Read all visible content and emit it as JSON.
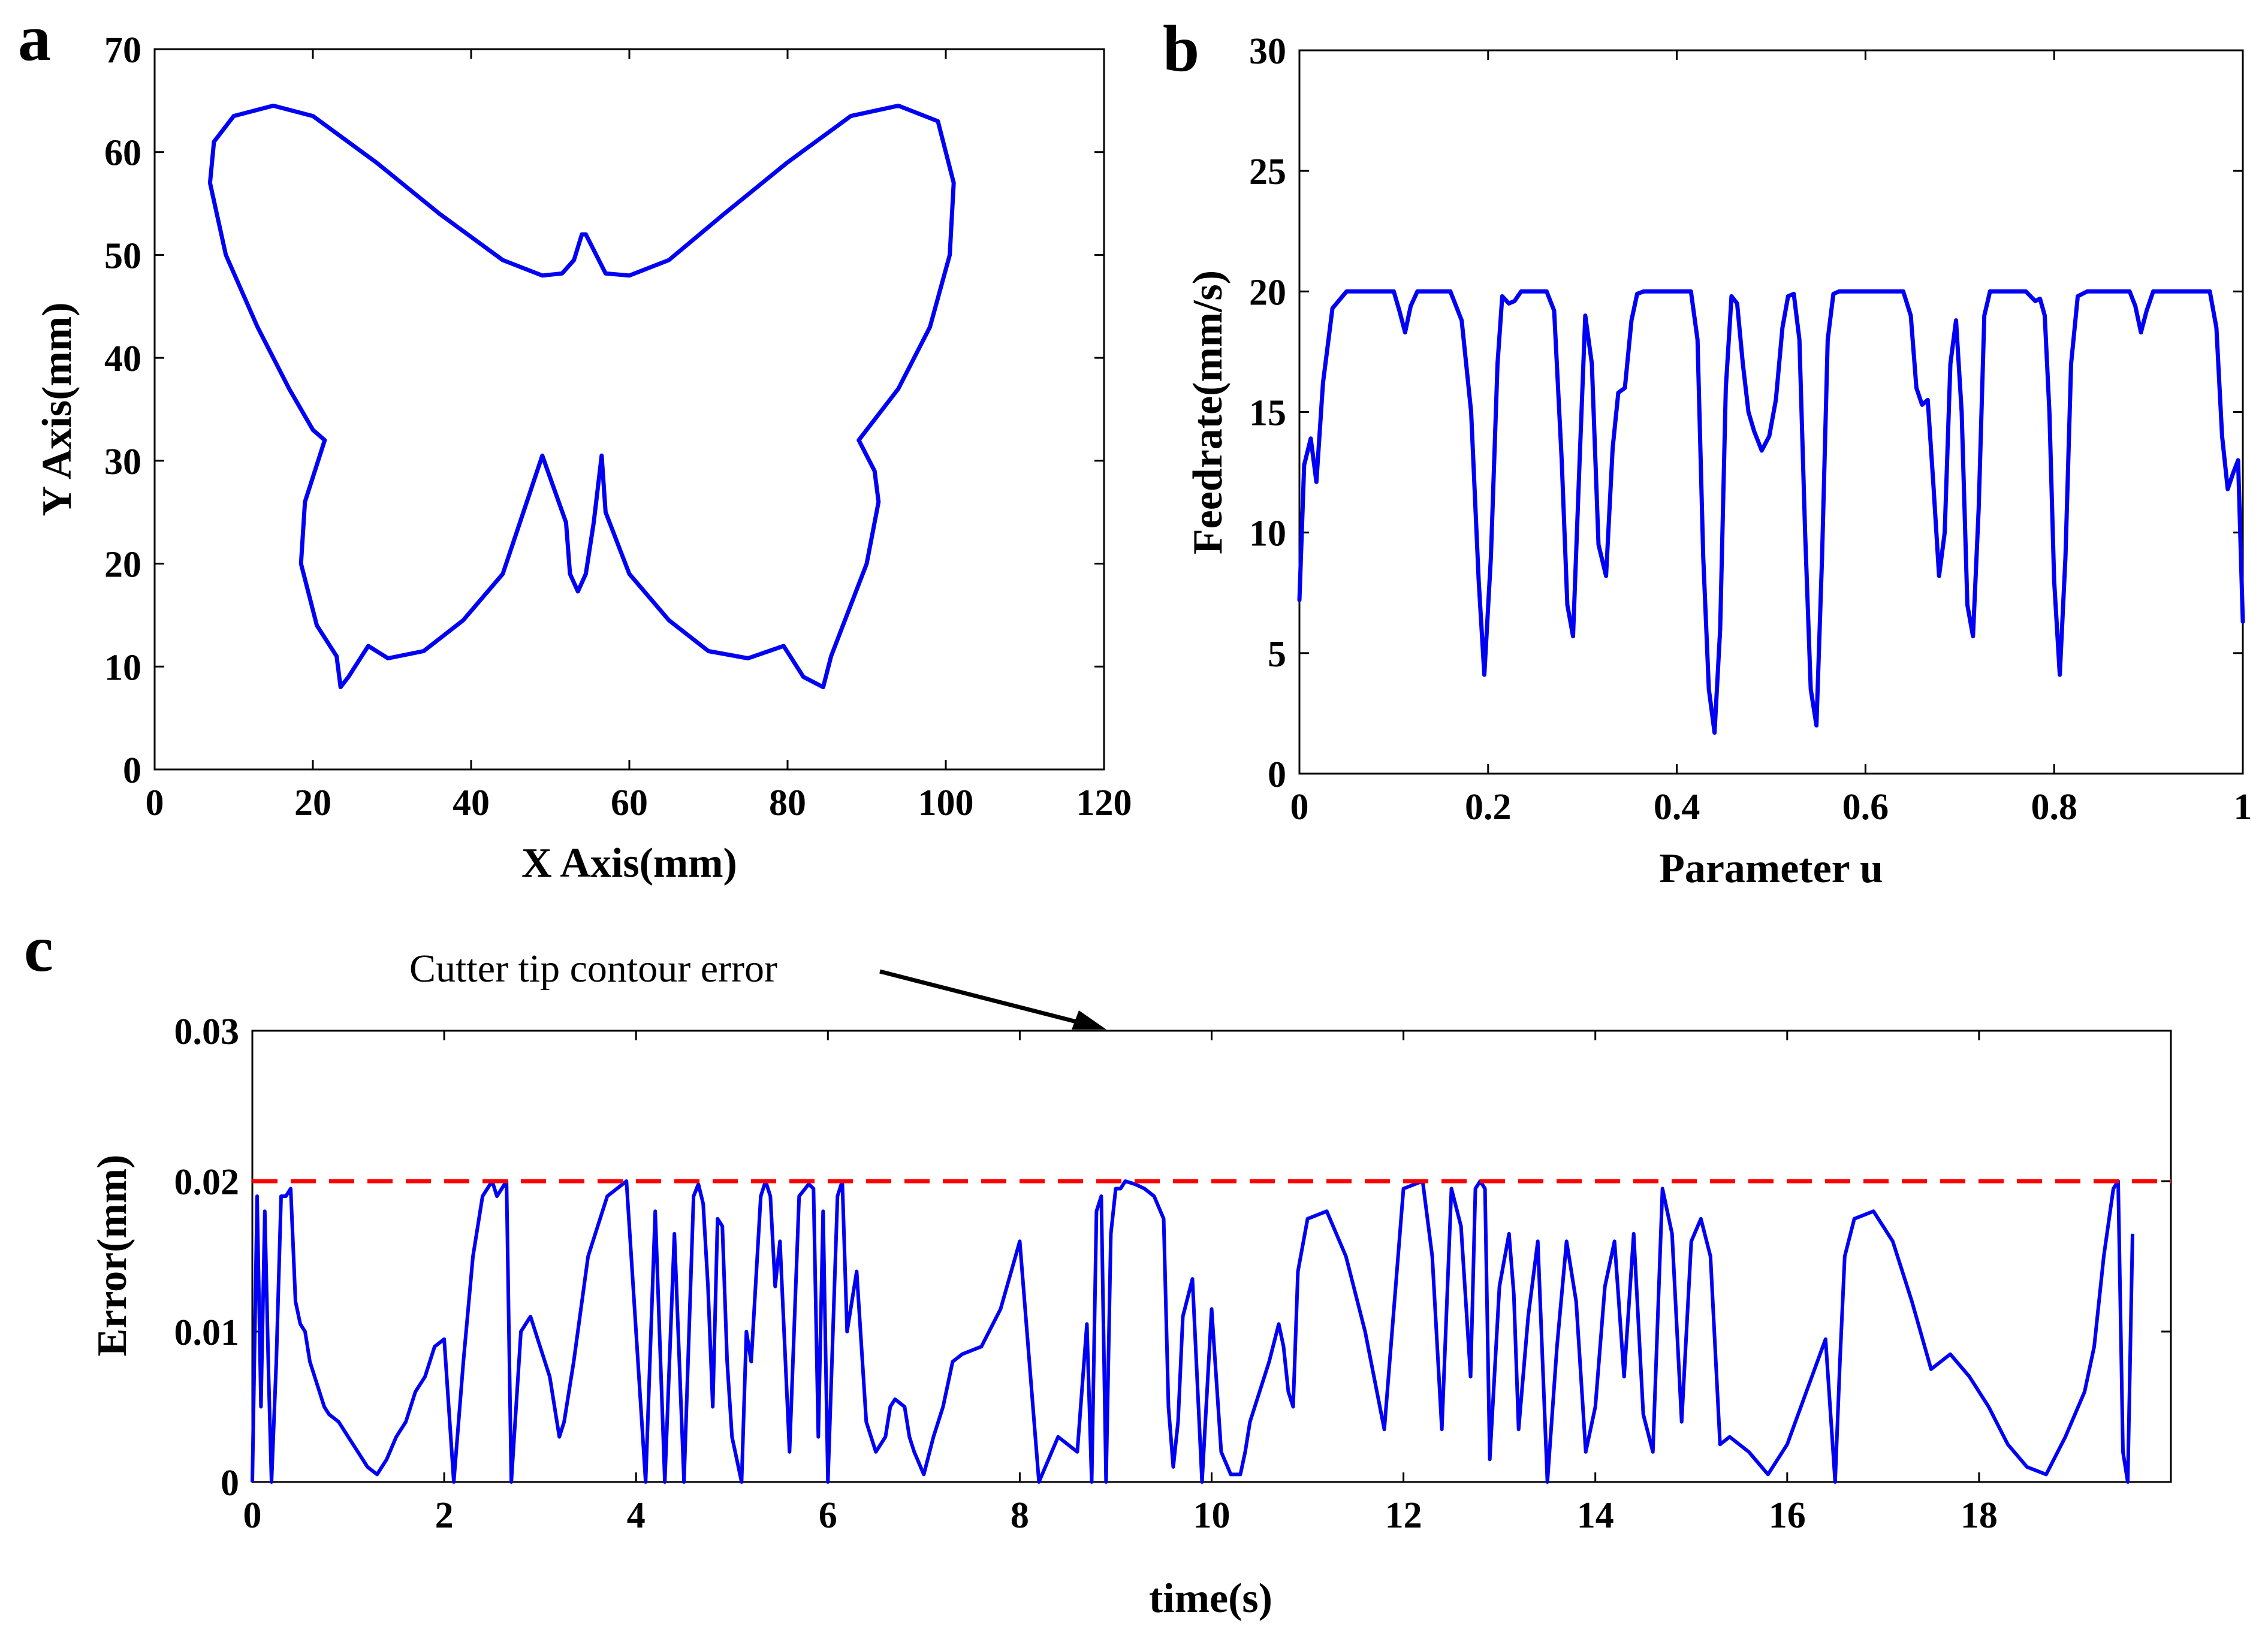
{
  "figure": {
    "panels": {
      "a": "a",
      "b": "b",
      "c": "c"
    }
  },
  "colors": {
    "curve": "#0000f5",
    "limit": "#ff0000",
    "axes": "#000000"
  },
  "chart_data": [
    {
      "id": "a",
      "type": "line",
      "title": "",
      "xlabel": "X Axis(mm)",
      "ylabel": "Y Axis(mm)",
      "xlim": [
        0,
        120
      ],
      "ylim": [
        0,
        70
      ],
      "xticks": [
        0,
        20,
        40,
        60,
        80,
        100,
        120
      ],
      "yticks": [
        0,
        10,
        20,
        30,
        40,
        50,
        60,
        70
      ],
      "grid": false,
      "series": [
        {
          "name": "butterfly toolpath",
          "x": [
            54.5,
            57,
            60,
            65,
            72,
            80,
            88,
            94,
            99,
            101,
            100.5,
            98,
            94,
            90,
            89,
            91,
            91.5,
            90,
            87,
            85.5,
            84.5,
            82,
            79.5,
            75,
            70,
            65,
            60,
            57,
            56.5,
            55.5,
            54.5,
            53.5,
            52.5,
            52,
            49,
            44,
            39,
            34,
            29.5,
            27,
            24.5,
            23.5,
            23,
            20.5,
            18.5,
            19,
            21.5,
            20,
            17,
            13,
            9,
            7,
            7.5,
            10,
            15,
            20,
            28,
            36,
            44,
            49,
            51.5,
            53,
            54,
            54.5
          ],
          "y": [
            52,
            48.2,
            48,
            49.5,
            54,
            59,
            63.5,
            64.5,
            63,
            57,
            50,
            43,
            37,
            33,
            32,
            29,
            26,
            20,
            14,
            11,
            8,
            9,
            12,
            10.8,
            11.5,
            14.5,
            19,
            25,
            30.5,
            24,
            19,
            17.3,
            19,
            24,
            30.5,
            19,
            14.5,
            11.5,
            10.8,
            12,
            9,
            8,
            11,
            14,
            20,
            26,
            32,
            33,
            37,
            43,
            50,
            57,
            61,
            63.5,
            64.5,
            63.5,
            59,
            54,
            49.5,
            48,
            48.2,
            49.5,
            52,
            52
          ]
        }
      ]
    },
    {
      "id": "b",
      "type": "line",
      "title": "",
      "xlabel": "Parameter u",
      "ylabel": "Feedrate(mm/s)",
      "xlim": [
        0,
        1
      ],
      "ylim": [
        0,
        30
      ],
      "xticks": [
        0,
        0.2,
        0.4,
        0.6,
        0.8,
        1
      ],
      "yticks": [
        0,
        5,
        10,
        15,
        20,
        25,
        30
      ],
      "grid": false,
      "series": [
        {
          "name": "feedrate",
          "x": [
            0,
            0.005,
            0.012,
            0.018,
            0.025,
            0.035,
            0.05,
            0.1,
            0.106,
            0.112,
            0.118,
            0.125,
            0.16,
            0.172,
            0.182,
            0.19,
            0.196,
            0.203,
            0.21,
            0.215,
            0.222,
            0.228,
            0.235,
            0.262,
            0.27,
            0.278,
            0.284,
            0.29,
            0.297,
            0.303,
            0.31,
            0.317,
            0.325,
            0.332,
            0.338,
            0.345,
            0.352,
            0.358,
            0.365,
            0.415,
            0.422,
            0.428,
            0.434,
            0.44,
            0.446,
            0.452,
            0.458,
            0.464,
            0.47,
            0.476,
            0.482,
            0.49,
            0.498,
            0.505,
            0.512,
            0.518,
            0.524,
            0.53,
            0.536,
            0.542,
            0.548,
            0.554,
            0.56,
            0.566,
            0.572,
            0.578,
            0.584,
            0.64,
            0.648,
            0.654,
            0.66,
            0.666,
            0.672,
            0.678,
            0.684,
            0.69,
            0.696,
            0.702,
            0.708,
            0.714,
            0.72,
            0.726,
            0.732,
            0.77,
            0.775,
            0.78,
            0.785,
            0.79,
            0.795,
            0.8,
            0.806,
            0.812,
            0.818,
            0.825,
            0.835,
            0.88,
            0.886,
            0.892,
            0.898,
            0.905,
            0.965,
            0.972,
            0.978,
            0.984,
            0.99,
            0.995,
            1
          ],
          "values": [
            7.2,
            12.8,
            13.9,
            12.1,
            16.2,
            19.3,
            20,
            20,
            19.2,
            18.3,
            19.4,
            20,
            20,
            18.8,
            15,
            8,
            4.1,
            9,
            17,
            19.8,
            19.5,
            19.6,
            20,
            20,
            19.2,
            13,
            7,
            5.7,
            13,
            19,
            17,
            9.5,
            8.2,
            13.5,
            15.8,
            16,
            18.8,
            19.9,
            20,
            20,
            18,
            9,
            3.5,
            1.7,
            6,
            16,
            19.8,
            19.5,
            17,
            15,
            14.2,
            13.4,
            14,
            15.5,
            18.5,
            19.8,
            19.9,
            18,
            10,
            3.5,
            2,
            9,
            18,
            19.9,
            20,
            20,
            20,
            20,
            19,
            16,
            15.3,
            15.5,
            12,
            8.2,
            10,
            17,
            18.8,
            15,
            7,
            5.7,
            11,
            19,
            20,
            20,
            19.8,
            19.6,
            19.7,
            19,
            15,
            8,
            4.1,
            9,
            17,
            19.8,
            20,
            20,
            19.4,
            18.3,
            19.2,
            20,
            20,
            18.5,
            14,
            11.8,
            12.5,
            13,
            6.3
          ]
        }
      ]
    },
    {
      "id": "c",
      "type": "line",
      "title": "",
      "xlabel": "time(s)",
      "ylabel": "Error(mm)",
      "xlim": [
        0,
        20
      ],
      "ylim": [
        0,
        0.03
      ],
      "xticks": [
        0,
        2,
        4,
        6,
        8,
        10,
        12,
        14,
        16,
        18
      ],
      "yticks": [
        0,
        0.01,
        0.02,
        0.03
      ],
      "grid": false,
      "annotation": "Cutter tip contour error",
      "limit": 0.02,
      "series": [
        {
          "name": "cutter tip contour error",
          "x": [
            0,
            0.05,
            0.09,
            0.13,
            0.17,
            0.2,
            0.25,
            0.3,
            0.35,
            0.4,
            0.45,
            0.5,
            0.55,
            0.6,
            0.65,
            0.7,
            0.75,
            0.8,
            0.9,
            1.0,
            1.1,
            1.2,
            1.3,
            1.4,
            1.5,
            1.6,
            1.7,
            1.8,
            1.9,
            2.0,
            2.1,
            2.2,
            2.3,
            2.4,
            2.5,
            2.55,
            2.6,
            2.65,
            2.7,
            2.8,
            2.9,
            3.0,
            3.1,
            3.15,
            3.2,
            3.25,
            3.35,
            3.5,
            3.7,
            3.9,
            4.1,
            4.2,
            4.3,
            4.4,
            4.5,
            4.6,
            4.65,
            4.7,
            4.75,
            4.8,
            4.85,
            4.9,
            4.95,
            5.0,
            5.1,
            5.15,
            5.2,
            5.3,
            5.35,
            5.4,
            5.45,
            5.5,
            5.6,
            5.7,
            5.8,
            5.85,
            5.9,
            5.95,
            6.0,
            6.1,
            6.15,
            6.2,
            6.3,
            6.35,
            6.4,
            6.5,
            6.6,
            6.65,
            6.7,
            6.8,
            6.85,
            6.9,
            7.0,
            7.1,
            7.2,
            7.3,
            7.4,
            7.6,
            7.8,
            8.0,
            8.2,
            8.4,
            8.6,
            8.7,
            8.75,
            8.8,
            8.85,
            8.9,
            8.95,
            9.0,
            9.05,
            9.1,
            9.2,
            9.3,
            9.4,
            9.5,
            9.55,
            9.6,
            9.65,
            9.7,
            9.8,
            9.9,
            10.0,
            10.1,
            10.2,
            10.3,
            10.35,
            10.4,
            10.5,
            10.6,
            10.7,
            10.75,
            10.8,
            10.85,
            10.9,
            11.0,
            11.2,
            11.4,
            11.6,
            11.8,
            12.0,
            12.2,
            12.3,
            12.4,
            12.5,
            12.6,
            12.7,
            12.75,
            12.8,
            12.85,
            12.9,
            13.0,
            13.1,
            13.15,
            13.2,
            13.3,
            13.4,
            13.5,
            13.6,
            13.7,
            13.8,
            13.9,
            14.0,
            14.1,
            14.2,
            14.3,
            14.4,
            14.5,
            14.6,
            14.7,
            14.8,
            14.9,
            15.0,
            15.1,
            15.2,
            15.3,
            15.4,
            15.6,
            15.8,
            16.0,
            16.2,
            16.4,
            16.5,
            16.55,
            16.6,
            16.7,
            16.9,
            17.1,
            17.3,
            17.5,
            17.7,
            17.9,
            18.1,
            18.3,
            18.5,
            18.7,
            18.9,
            19.1,
            19.2,
            19.3,
            19.4,
            19.45,
            19.5,
            19.55,
            19.6
          ],
          "values": [
            0,
            0.019,
            0.005,
            0.018,
            0.007,
            0,
            0.008,
            0.019,
            0.019,
            0.0195,
            0.012,
            0.0105,
            0.01,
            0.008,
            0.007,
            0.006,
            0.005,
            0.0045,
            0.004,
            0.003,
            0.002,
            0.001,
            0.0005,
            0.0015,
            0.003,
            0.004,
            0.006,
            0.007,
            0.009,
            0.0095,
            0,
            0.008,
            0.015,
            0.019,
            0.02,
            0.019,
            0.0195,
            0.02,
            0,
            0.01,
            0.011,
            0.009,
            0.007,
            0.005,
            0.003,
            0.004,
            0.008,
            0.015,
            0.019,
            0.02,
            0,
            0.018,
            0,
            0.0165,
            0,
            0.019,
            0.0198,
            0.0185,
            0.013,
            0.005,
            0.0175,
            0.017,
            0.008,
            0.003,
            0,
            0.01,
            0.008,
            0.019,
            0.02,
            0.019,
            0.013,
            0.016,
            0.002,
            0.019,
            0.0198,
            0.0195,
            0.003,
            0.018,
            0,
            0.019,
            0.02,
            0.01,
            0.014,
            0.009,
            0.004,
            0.002,
            0.003,
            0.005,
            0.0055,
            0.005,
            0.003,
            0.002,
            0.0005,
            0.003,
            0.005,
            0.008,
            0.0085,
            0.009,
            0.0115,
            0.016,
            0,
            0.003,
            0.002,
            0.0105,
            0,
            0.018,
            0.019,
            0,
            0.0165,
            0.0195,
            0.0195,
            0.02,
            0.0198,
            0.0195,
            0.019,
            0.0175,
            0.005,
            0.001,
            0.004,
            0.011,
            0.0135,
            0,
            0.0115,
            0.002,
            0.0005,
            0.0005,
            0.002,
            0.004,
            0.006,
            0.008,
            0.0105,
            0.009,
            0.006,
            0.005,
            0.014,
            0.0175,
            0.018,
            0.015,
            0.01,
            0.0035,
            0.0195,
            0.02,
            0.015,
            0.0035,
            0.0195,
            0.017,
            0.007,
            0.0195,
            0.02,
            0.0195,
            0.0015,
            0.013,
            0.0165,
            0.0125,
            0.0035,
            0.011,
            0.016,
            0,
            0.009,
            0.016,
            0.012,
            0.002,
            0.005,
            0.013,
            0.016,
            0.007,
            0.0165,
            0.0045,
            0.002,
            0.0195,
            0.0165,
            0.004,
            0.016,
            0.0175,
            0.015,
            0.0025,
            0.003,
            0.002,
            0.0005,
            0.0025,
            0.006,
            0.0095,
            0,
            0.008,
            0.015,
            0.0175,
            0.018,
            0.016,
            0.012,
            0.0075,
            0.0085,
            0.007,
            0.005,
            0.0025,
            0.001,
            0.0005,
            0.003,
            0.006,
            0.009,
            0.015,
            0.0195,
            0.02,
            0.002,
            0,
            0.0165
          ]
        }
      ]
    }
  ]
}
